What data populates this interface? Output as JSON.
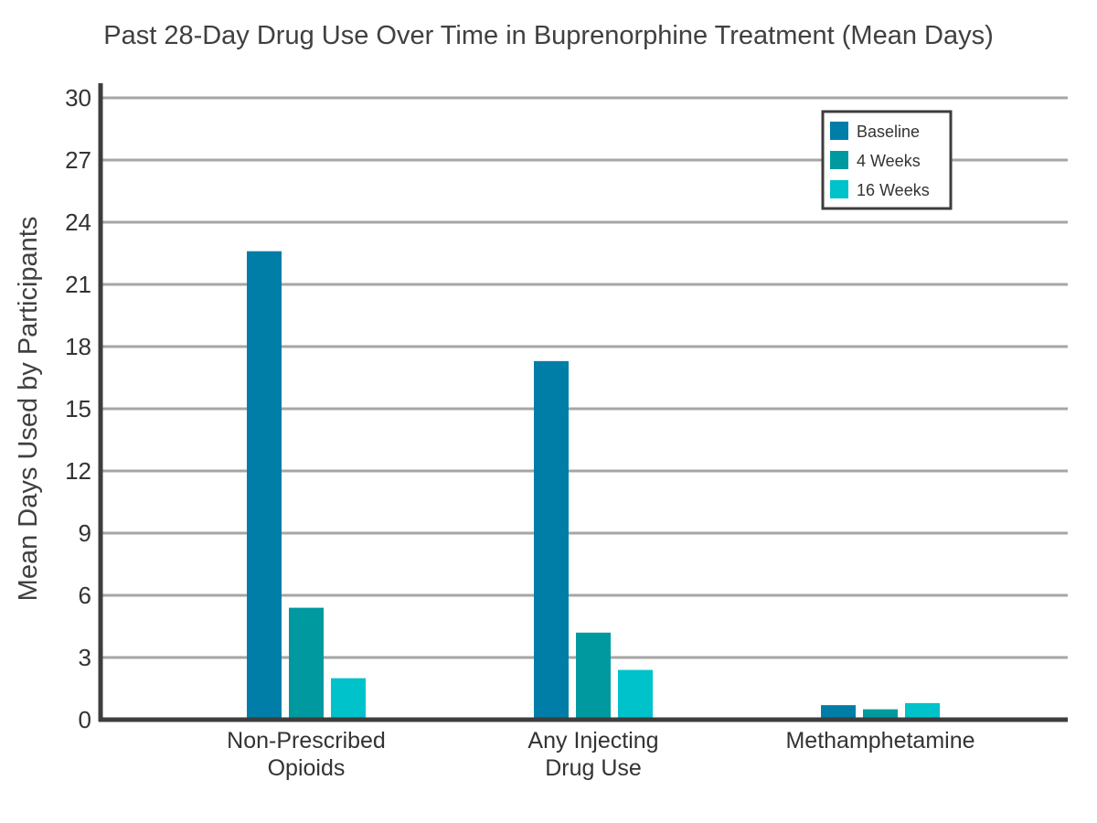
{
  "chart_data": {
    "type": "bar",
    "title": "Past 28-Day Drug Use Over Time in Buprenorphine Treatment (Mean Days)",
    "xlabel": "",
    "ylabel": "Mean Days Used by Participants",
    "categories": [
      [
        "Non-Prescribed",
        "Opioids"
      ],
      [
        "Any Injecting",
        "Drug Use"
      ],
      [
        "Methamphetamine"
      ]
    ],
    "series": [
      {
        "name": "Baseline",
        "color": "#007EA7",
        "values": [
          22.6,
          17.3,
          0.7
        ]
      },
      {
        "name": "4 Weeks",
        "color": "#00999F",
        "values": [
          5.4,
          4.2,
          0.5
        ]
      },
      {
        "name": "16 Weeks",
        "color": "#00C2CB",
        "values": [
          2.0,
          2.4,
          0.8
        ]
      }
    ],
    "ylim": [
      0,
      30
    ],
    "yticks": [
      0,
      3,
      6,
      9,
      12,
      15,
      18,
      21,
      24,
      27,
      30
    ],
    "grid": true,
    "legend_position": "top-right"
  }
}
